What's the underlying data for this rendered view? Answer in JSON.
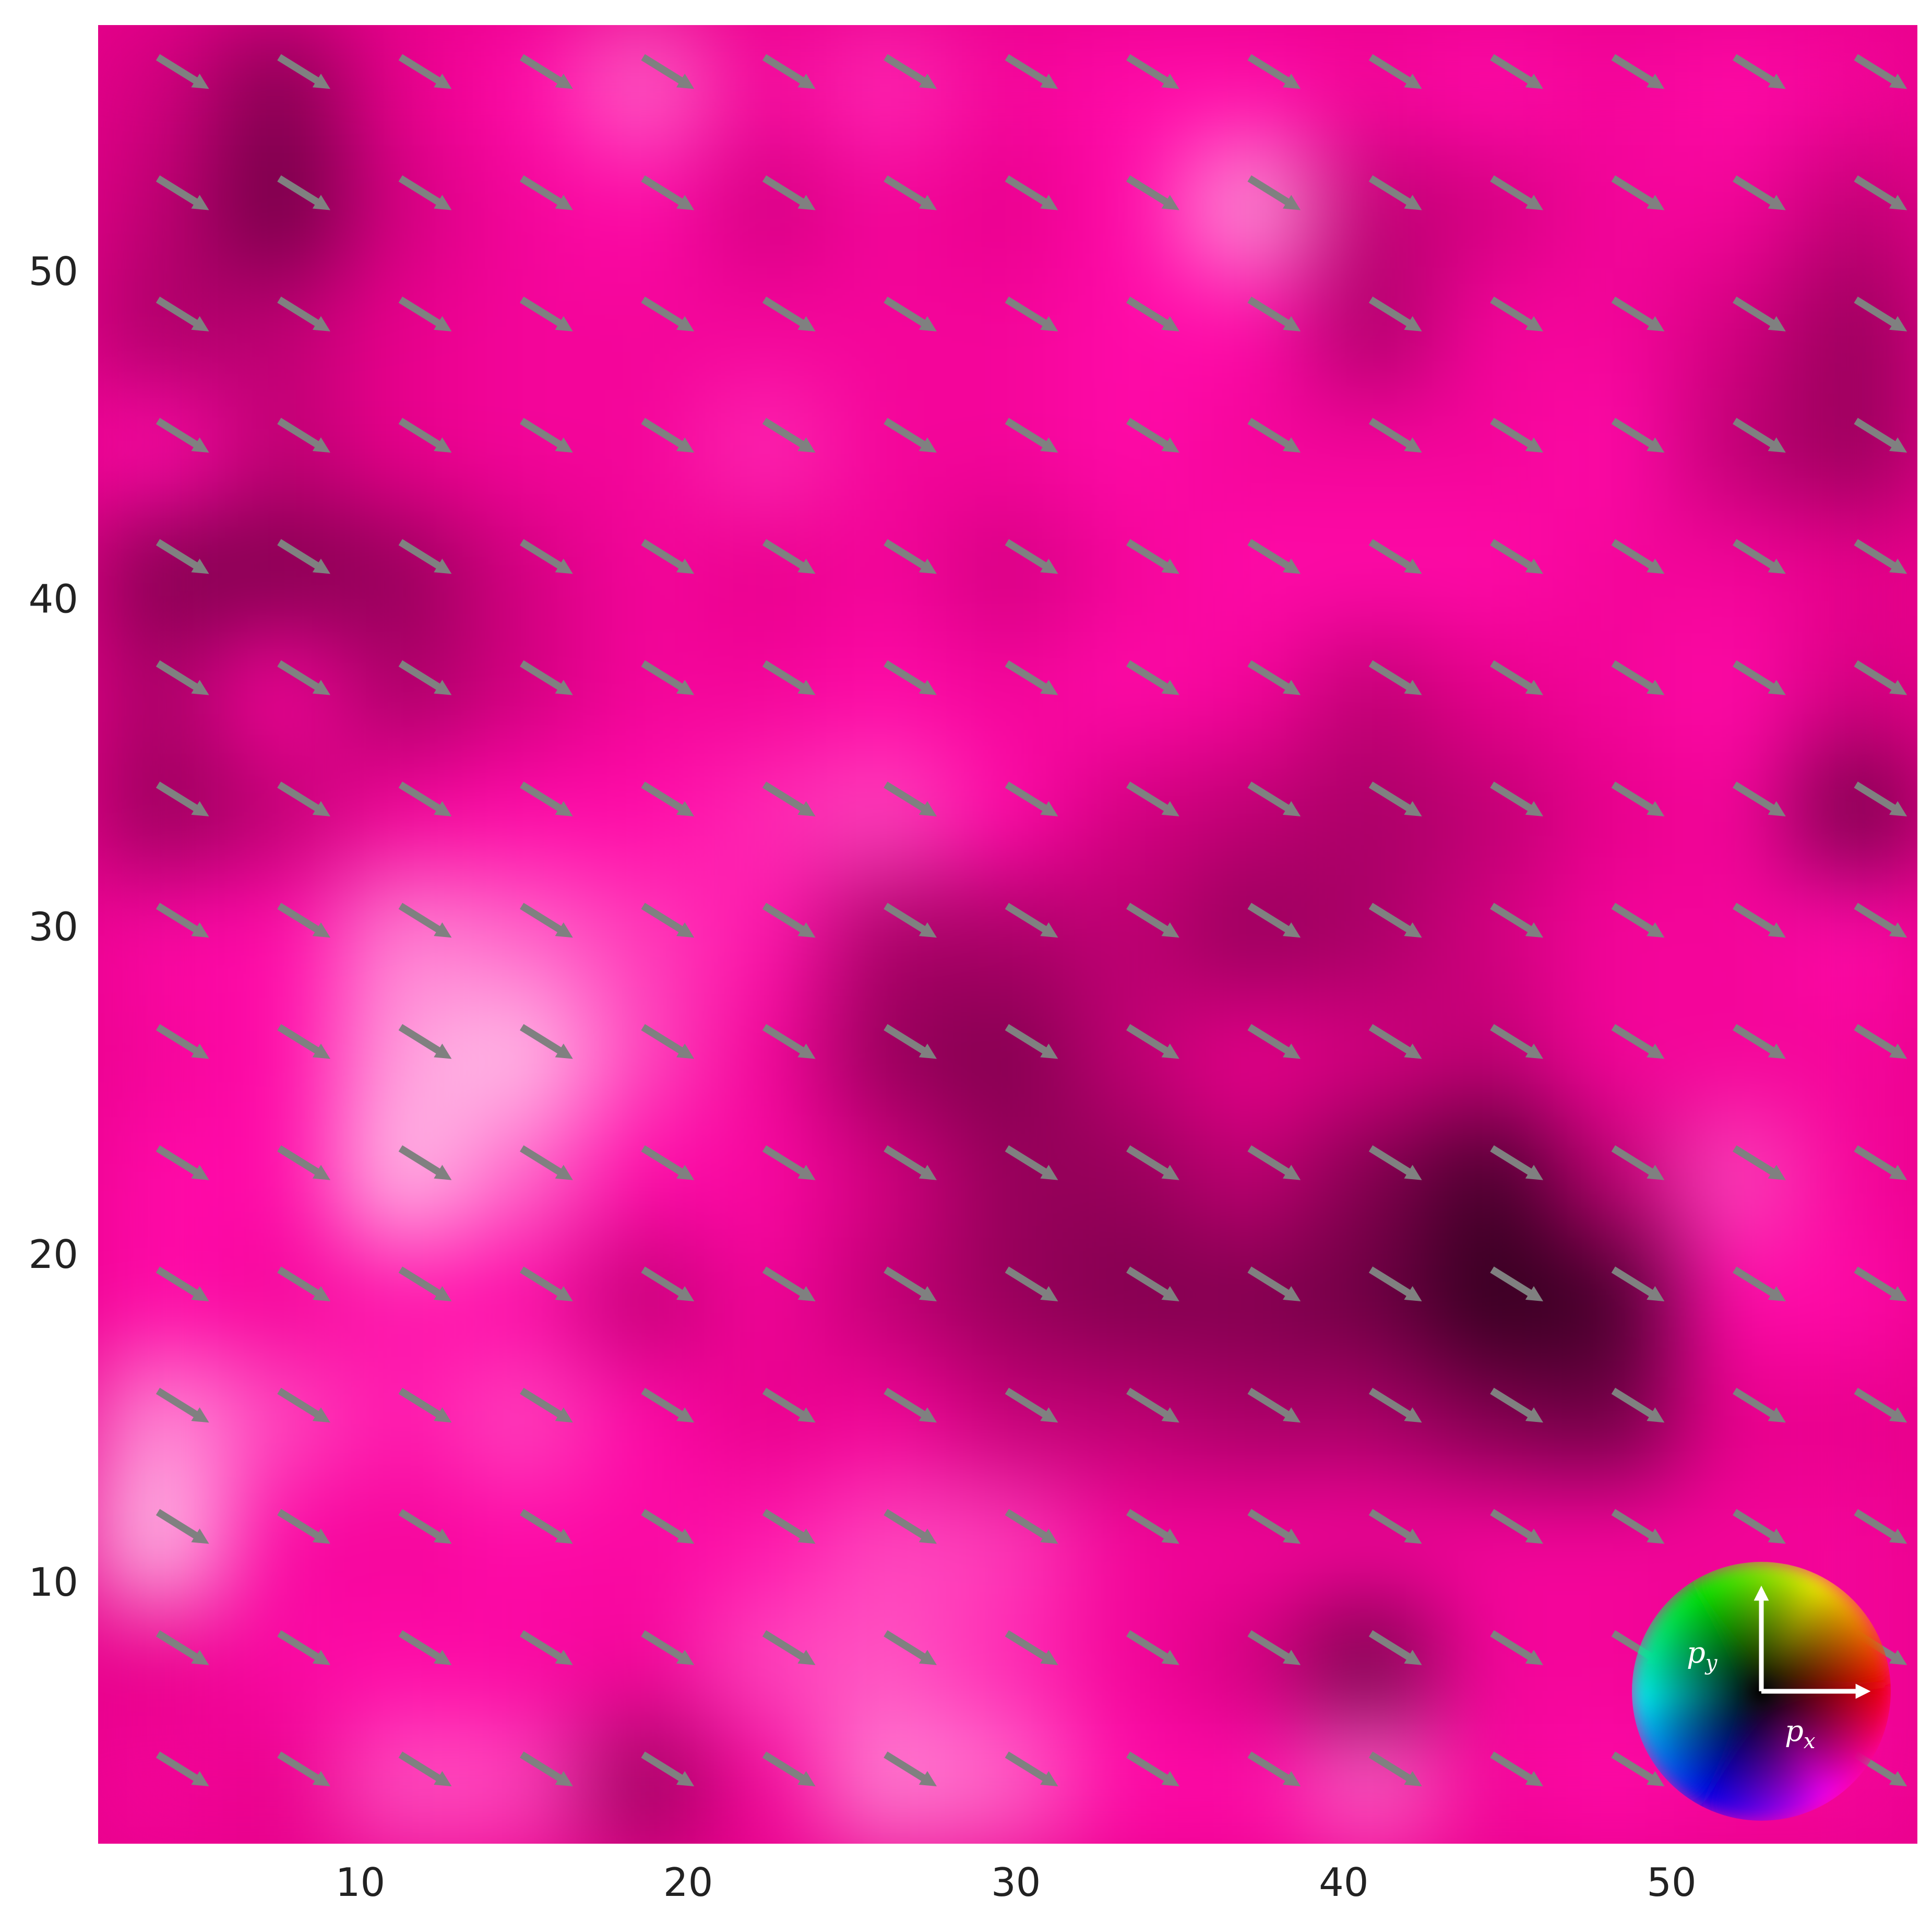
{
  "chart_data": {
    "type": "heatmap",
    "title": "",
    "xlabel": "",
    "ylabel": "",
    "xlim": [
      2,
      57.5
    ],
    "ylim": [
      2,
      57.5
    ],
    "x_ticks": [
      10,
      20,
      30,
      40,
      50
    ],
    "y_ticks": [
      10,
      20,
      30,
      40,
      50
    ],
    "x_tick_labels": [
      "10",
      "20",
      "30",
      "40",
      "50"
    ],
    "y_tick_labels": [
      "10",
      "20",
      "30",
      "40",
      "50"
    ],
    "grid": false,
    "colormap": "magenta-hue-magnitude",
    "colors": {
      "dark": "#1a0010",
      "base": "#e8008c",
      "bright": "#ff0aa8",
      "light": "#ffffff",
      "arrow": "#808080"
    },
    "magnitude_rows_bottom_to_top": [
      [
        0.55,
        0.5,
        0.72,
        0.7,
        0.3,
        0.55,
        0.8,
        0.75,
        0.6,
        0.6,
        0.75,
        0.55,
        0.6,
        0.55,
        0.55
      ],
      [
        0.5,
        0.58,
        0.6,
        0.58,
        0.55,
        0.7,
        0.72,
        0.65,
        0.55,
        0.45,
        0.2,
        0.55,
        0.55,
        0.5,
        0.55
      ],
      [
        0.92,
        0.58,
        0.55,
        0.6,
        0.58,
        0.62,
        0.7,
        0.68,
        0.55,
        0.55,
        0.55,
        0.55,
        0.55,
        0.55,
        0.55
      ],
      [
        0.82,
        0.7,
        0.62,
        0.7,
        0.6,
        0.5,
        0.55,
        0.42,
        0.4,
        0.35,
        0.35,
        0.25,
        0.2,
        0.5,
        0.5
      ],
      [
        0.6,
        0.55,
        0.62,
        0.6,
        0.4,
        0.55,
        0.4,
        0.3,
        0.25,
        0.25,
        0.2,
        0.05,
        0.1,
        0.6,
        0.6
      ],
      [
        0.6,
        0.6,
        0.9,
        0.75,
        0.6,
        0.58,
        0.45,
        0.3,
        0.3,
        0.4,
        0.25,
        0.1,
        0.4,
        0.7,
        0.55
      ],
      [
        0.55,
        0.6,
        0.85,
        0.9,
        0.7,
        0.55,
        0.3,
        0.25,
        0.4,
        0.5,
        0.45,
        0.4,
        0.55,
        0.55,
        0.55
      ],
      [
        0.58,
        0.6,
        0.8,
        0.75,
        0.68,
        0.62,
        0.35,
        0.35,
        0.4,
        0.3,
        0.35,
        0.45,
        0.55,
        0.55,
        0.6
      ],
      [
        0.3,
        0.4,
        0.55,
        0.6,
        0.6,
        0.65,
        0.7,
        0.6,
        0.45,
        0.4,
        0.35,
        0.4,
        0.5,
        0.55,
        0.2
      ],
      [
        0.35,
        0.55,
        0.35,
        0.45,
        0.55,
        0.55,
        0.6,
        0.55,
        0.6,
        0.55,
        0.4,
        0.5,
        0.55,
        0.6,
        0.45
      ],
      [
        0.25,
        0.25,
        0.3,
        0.45,
        0.55,
        0.5,
        0.55,
        0.45,
        0.55,
        0.6,
        0.6,
        0.6,
        0.55,
        0.55,
        0.5
      ],
      [
        0.6,
        0.4,
        0.5,
        0.55,
        0.55,
        0.65,
        0.55,
        0.55,
        0.6,
        0.55,
        0.55,
        0.55,
        0.6,
        0.4,
        0.3
      ],
      [
        0.35,
        0.4,
        0.5,
        0.55,
        0.55,
        0.55,
        0.55,
        0.55,
        0.6,
        0.6,
        0.35,
        0.55,
        0.55,
        0.45,
        0.3
      ],
      [
        0.4,
        0.2,
        0.45,
        0.55,
        0.6,
        0.45,
        0.55,
        0.5,
        0.6,
        0.85,
        0.4,
        0.45,
        0.55,
        0.55,
        0.4
      ],
      [
        0.45,
        0.25,
        0.5,
        0.6,
        0.75,
        0.55,
        0.65,
        0.55,
        0.6,
        0.6,
        0.55,
        0.6,
        0.55,
        0.6,
        0.55
      ]
    ],
    "vector_field": {
      "x": [
        4.5,
        8.2,
        11.9,
        15.6,
        19.3,
        23.0,
        26.7,
        30.4,
        34.1,
        37.8,
        41.5,
        45.2,
        48.9,
        52.6,
        56.3
      ],
      "y": [
        4.3,
        8.0,
        11.7,
        15.4,
        19.1,
        22.8,
        26.5,
        30.2,
        33.9,
        37.6,
        41.3,
        45.0,
        48.7,
        52.4,
        56.1
      ],
      "u": 1.0,
      "v": -0.62,
      "color": "#808080"
    },
    "legend": {
      "type": "color-wheel",
      "placement": "bottom-right",
      "x_label": "p",
      "x_sub": "x",
      "y_label": "p",
      "y_sub": "y"
    }
  }
}
